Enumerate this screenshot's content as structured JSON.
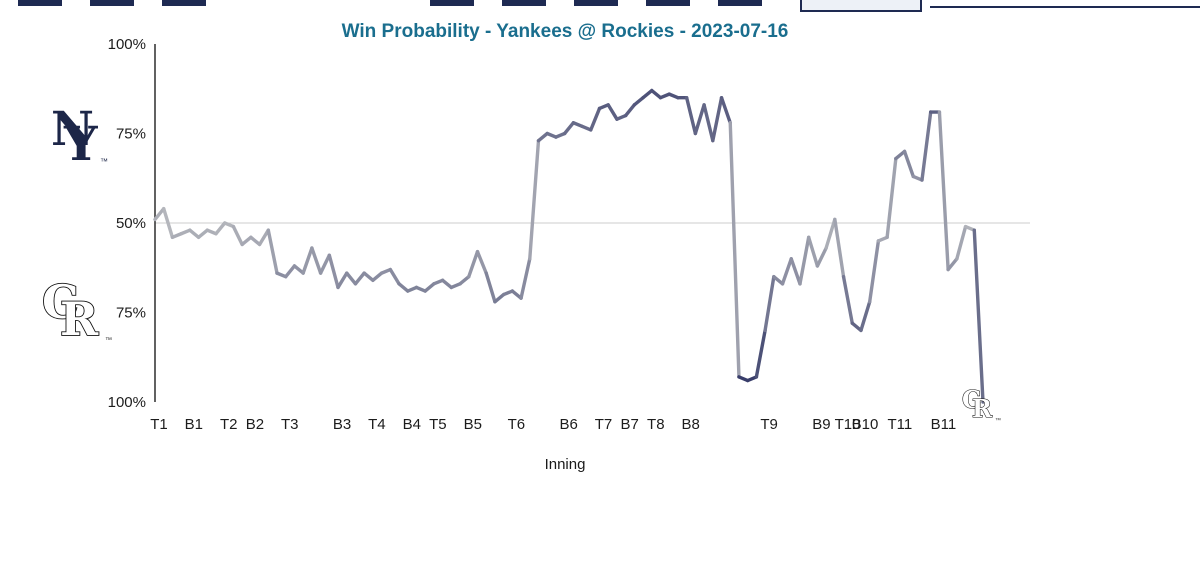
{
  "logos": {
    "yankees": {
      "letters": [
        "N",
        "Y"
      ],
      "tm": "™",
      "color": "#1c2648"
    },
    "rockies": {
      "letters": [
        "C",
        "R"
      ],
      "tm": "™",
      "outline": "#111111"
    }
  },
  "chart_data": {
    "type": "line",
    "title": "Win Probability - Yankees @ Rockies - 2023-07-16",
    "date": "2023-07-16",
    "away_team": "Yankees",
    "home_team": "Rockies",
    "xlabel": "Inning",
    "ylabel": "Win Probability",
    "ylim": [
      0,
      100
    ],
    "gridline_at": 50,
    "grid": "50% line only",
    "legend": "none",
    "title_color": "#1a6e8e",
    "line_color_mid": "#b4b6bc",
    "line_color_extreme": "#262b5e",
    "ytick_values": [
      100,
      75,
      50,
      25,
      0
    ],
    "ytick_labels": [
      "100%",
      "75%",
      "50%",
      "75%",
      "100%"
    ],
    "innings": [
      {
        "label": "T1",
        "start": 0
      },
      {
        "label": "B1",
        "start": 4
      },
      {
        "label": "T2",
        "start": 8
      },
      {
        "label": "B2",
        "start": 11
      },
      {
        "label": "T3",
        "start": 15
      },
      {
        "label": "B3",
        "start": 21
      },
      {
        "label": "T4",
        "start": 25
      },
      {
        "label": "B4",
        "start": 29
      },
      {
        "label": "T5",
        "start": 32
      },
      {
        "label": "B5",
        "start": 36
      },
      {
        "label": "T6",
        "start": 41
      },
      {
        "label": "B6",
        "start": 47
      },
      {
        "label": "T7",
        "start": 51
      },
      {
        "label": "B7",
        "start": 54
      },
      {
        "label": "T8",
        "start": 57
      },
      {
        "label": "B8",
        "start": 61
      },
      {
        "label": "T9",
        "start": 70
      },
      {
        "label": "B9",
        "start": 76
      },
      {
        "label": "T10",
        "start": 79
      },
      {
        "label": "B10",
        "start": 81
      },
      {
        "label": "T11",
        "start": 85
      },
      {
        "label": "B11",
        "start": 90
      }
    ],
    "win_prob": [
      51,
      54,
      46,
      47,
      48,
      46,
      48,
      47,
      50,
      49,
      44,
      46,
      44,
      48,
      36,
      35,
      38,
      36,
      43,
      36,
      41,
      32,
      36,
      33,
      36,
      34,
      36,
      37,
      33,
      31,
      32,
      31,
      33,
      34,
      32,
      33,
      35,
      42,
      36,
      28,
      30,
      31,
      29,
      40,
      73,
      75,
      74,
      75,
      78,
      77,
      76,
      82,
      83,
      79,
      80,
      83,
      85,
      87,
      85,
      86,
      85,
      85,
      75,
      83,
      73,
      85,
      78,
      7,
      6,
      7,
      20,
      35,
      33,
      40,
      33,
      46,
      38,
      43,
      51,
      35,
      22,
      20,
      28,
      45,
      46,
      68,
      70,
      63,
      62,
      81,
      81,
      37,
      40,
      49,
      48,
      0
    ]
  }
}
